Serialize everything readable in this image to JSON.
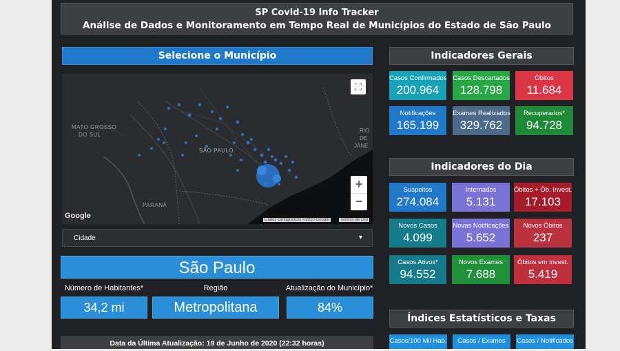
{
  "header": {
    "title": "SP Covid-19 Info Tracker",
    "subtitle": "Análise de Dados e Monitoramento em Tempo Real de Municípios do Estado de São Paulo"
  },
  "left": {
    "select_title": "Selecione o Município",
    "map": {
      "labels": [
        "MATO GROSSO",
        "DO SUL",
        "SÃO PAULO",
        "PARANÁ",
        "RIO",
        "DE",
        "JANE"
      ],
      "google_logo": "Google",
      "attribution": "Dados cartográficos ©2020 Google",
      "terms": "Termos de Uso",
      "zoom_in": "+",
      "zoom_out": "−",
      "fullscreen": "⛶"
    },
    "dropdown": {
      "placeholder": "Cidade",
      "arrow": "▾"
    },
    "municipio": "São Paulo",
    "stats_labels": [
      "Número de Habitantes*",
      "Região",
      "Atualização do Município*"
    ],
    "stats_values": [
      "34,2 mi",
      "Metropolitana",
      "84%"
    ],
    "footer": "Data da Última Atualização: 19 de Junho de 2020 (22:32 horas)"
  },
  "right": {
    "gerais_title": "Indicadores Gerais",
    "gerais": [
      {
        "label": "Casos Confirmados",
        "value": "200.964",
        "color": "#17a2b8"
      },
      {
        "label": "Casos Descartados",
        "value": "128.798",
        "color": "#28a745"
      },
      {
        "label": "Óbitos",
        "value": "11.684",
        "color": "#dc3545"
      },
      {
        "label": "Notificações",
        "value": "165.199",
        "color": "#1f78c8"
      },
      {
        "label": "Exames Realizados",
        "value": "329.762",
        "color": "#4e6a8a"
      },
      {
        "label": "Recuperados*",
        "value": "94.728",
        "color": "#1e8a38"
      }
    ],
    "dia_title": "Indicadores do Dia",
    "dia": [
      {
        "label": "Suspeitos",
        "value": "274.084"
      },
      {
        "label": "Internados",
        "value": "5.131"
      },
      {
        "label": "Óbitos + Ób. Invest.",
        "value": "17.103"
      },
      {
        "label": "Novos Casos",
        "value": "4.099"
      },
      {
        "label": "Novas Notificações",
        "value": "5.652"
      },
      {
        "label": "Novos Óbitos",
        "value": "237"
      },
      {
        "label": "Casos Ativos*",
        "value": "94.552"
      },
      {
        "label": "Novos Exames",
        "value": "7.688"
      },
      {
        "label": "Óbitos em Invest.",
        "value": "5.419"
      }
    ],
    "indices_title": "Índices Estatísticos e Taxas",
    "indices": [
      {
        "label": "Casos/100 Mil Hab."
      },
      {
        "label": "Casos / Exames"
      },
      {
        "label": "Casos / Notificados"
      }
    ]
  }
}
